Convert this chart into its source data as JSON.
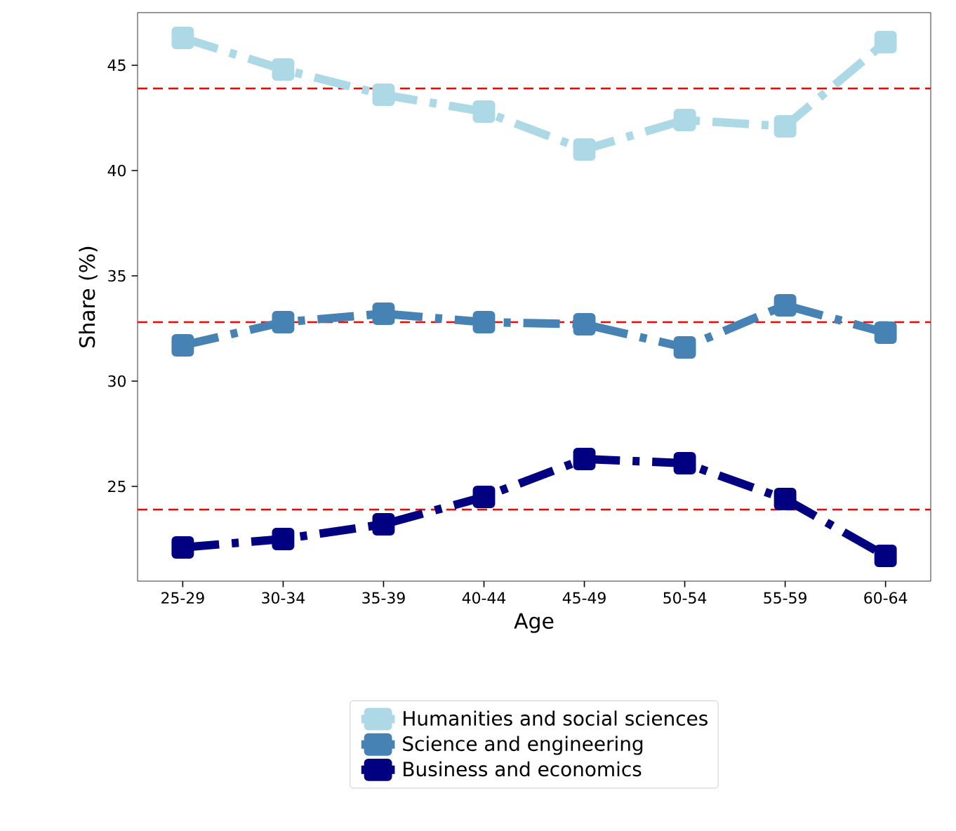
{
  "chart_data": {
    "type": "line",
    "xlabel": "Age",
    "ylabel": "Share (%)",
    "categories": [
      "25-29",
      "30-34",
      "35-39",
      "40-44",
      "45-49",
      "50-54",
      "55-59",
      "60-64"
    ],
    "series": [
      {
        "name": "Humanities and social sciences",
        "color": "#add8e6",
        "values": [
          46.3,
          44.8,
          43.6,
          42.8,
          41.0,
          42.4,
          42.1,
          46.1
        ]
      },
      {
        "name": "Science and engineering",
        "color": "#4682b4",
        "values": [
          31.7,
          32.8,
          33.2,
          32.8,
          32.7,
          31.6,
          33.6,
          32.3
        ]
      },
      {
        "name": "Business and economics",
        "color": "#000080",
        "values": [
          22.1,
          22.5,
          23.2,
          24.5,
          26.3,
          26.1,
          24.4,
          21.7
        ]
      }
    ],
    "ylim": [
      20.5,
      47.5
    ],
    "yticks": [
      25,
      30,
      35,
      40,
      45
    ],
    "ref_lines": [
      {
        "axis": "y",
        "value": 43.9,
        "color": "#ff0000",
        "line_style": "dashed"
      },
      {
        "axis": "y",
        "value": 32.8,
        "color": "#ff0000",
        "line_style": "dashed"
      },
      {
        "axis": "y",
        "value": 23.9,
        "color": "#ff0000",
        "line_style": "dashed"
      }
    ],
    "marker": "square",
    "line_style": "dashdot",
    "legend": "bottom",
    "grid": false
  }
}
